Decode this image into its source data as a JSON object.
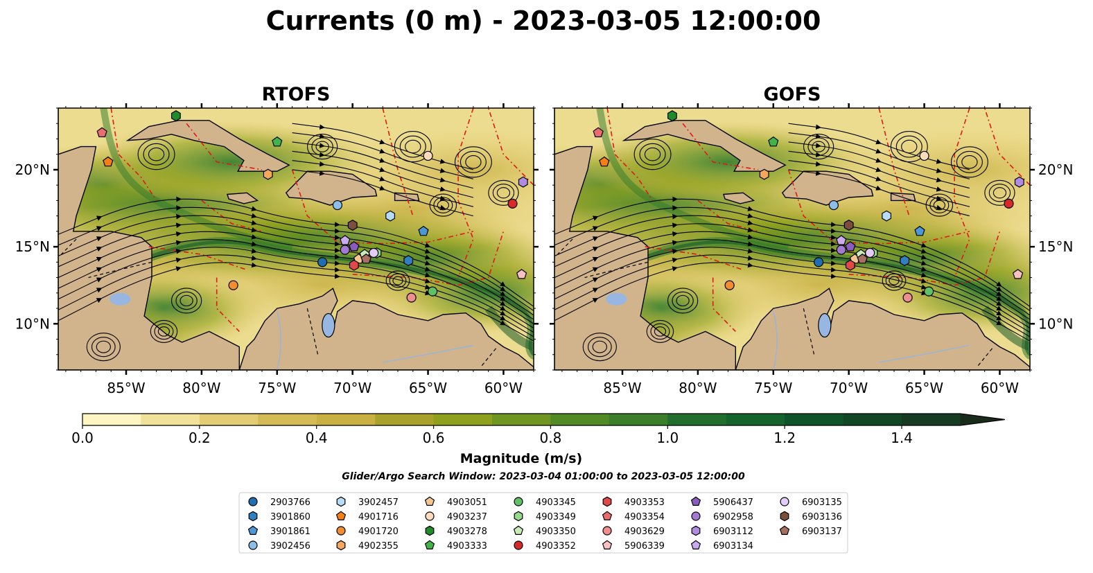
{
  "title": "Currents (0 m) - 2023-03-05 12:00:00",
  "chart_data": {
    "type": "map",
    "panels": [
      {
        "title": "RTOFS"
      },
      {
        "title": "GOFS"
      }
    ],
    "lon_range": [
      -89.5,
      -58
    ],
    "lat_range": [
      7,
      24
    ],
    "x_ticks": [
      "85°W",
      "80°W",
      "75°W",
      "70°W",
      "65°W",
      "60°W"
    ],
    "x_tick_values": [
      -85,
      -80,
      -75,
      -70,
      -65,
      -60
    ],
    "y_ticks": [
      "20°N",
      "15°N",
      "10°N"
    ],
    "y_tick_values": [
      20,
      15,
      10
    ],
    "colorbar": {
      "label": "Magnitude (m/s)",
      "ticks": [
        "0.0",
        "0.2",
        "0.4",
        "0.6",
        "0.8",
        "1.0",
        "1.2",
        "1.4"
      ],
      "tick_values": [
        0,
        0.2,
        0.4,
        0.6,
        0.8,
        1.0,
        1.2,
        1.4
      ],
      "range": [
        0,
        1.6
      ],
      "extend": "max",
      "colors": [
        "#fdf6c3",
        "#f1e29a",
        "#e3cd73",
        "#d5bb56",
        "#c8b043",
        "#a9a22a",
        "#8fa01c",
        "#6f9621",
        "#528a26",
        "#3c7f2a",
        "#226f2d",
        "#15632d",
        "#0f532a",
        "#124726",
        "#163a22",
        "#192c1c"
      ]
    },
    "search_window": "Glider/Argo Search Window: 2023-03-04 01:00:00 to 2023-03-05 12:00:00",
    "land_color": "#d2b48c",
    "lake_color": "#97b6e1",
    "platforms": [
      {
        "id": "2903766",
        "marker": "circle",
        "color": "#1f6eb0",
        "lon": -72,
        "lat": 14
      },
      {
        "id": "3901860",
        "marker": "hexagon",
        "color": "#2f7fc1",
        "lon": -66.3,
        "lat": 14.1
      },
      {
        "id": "3901861",
        "marker": "pentagon",
        "color": "#4a98d6",
        "lon": -65.3,
        "lat": 16
      },
      {
        "id": "3902456",
        "marker": "circle",
        "color": "#8dbde9",
        "lon": -71,
        "lat": 17.7
      },
      {
        "id": "3902457",
        "marker": "hexagon",
        "color": "#b8dcf5",
        "lon": -67.5,
        "lat": 17
      },
      {
        "id": "4901716",
        "marker": "pentagon",
        "color": "#f57f17",
        "lon": -86.2,
        "lat": 20.5
      },
      {
        "id": "4901720",
        "marker": "circle",
        "color": "#f28c30",
        "lon": -77.9,
        "lat": 12.5
      },
      {
        "id": "4902355",
        "marker": "hexagon",
        "color": "#f5a75c",
        "lon": -75.6,
        "lat": 19.7
      },
      {
        "id": "4903051",
        "marker": "pentagon",
        "color": "#f7c590",
        "lon": -69.6,
        "lat": 14.2
      },
      {
        "id": "4903237",
        "marker": "circle",
        "color": "#fcdcbc",
        "lon": -65,
        "lat": 20.9
      },
      {
        "id": "4903278",
        "marker": "hexagon",
        "color": "#1f8b2a",
        "lon": -81.7,
        "lat": 23.5
      },
      {
        "id": "4903333",
        "marker": "pentagon",
        "color": "#42b349",
        "lon": -75,
        "lat": 21.8
      },
      {
        "id": "4903345",
        "marker": "circle",
        "color": "#5fc064",
        "lon": -64.7,
        "lat": 12.1
      },
      {
        "id": "4903349",
        "marker": "hexagon",
        "color": "#95d98a",
        "lon": -68.4,
        "lat": 14.6
      },
      {
        "id": "4903350",
        "marker": "pentagon",
        "color": "#c7ecb8",
        "lon": -69.2,
        "lat": 14.5
      },
      {
        "id": "4903352",
        "marker": "circle",
        "color": "#d62a2a",
        "lon": -59.4,
        "lat": 17.8
      },
      {
        "id": "4903353",
        "marker": "hexagon",
        "color": "#e24848",
        "lon": -69.9,
        "lat": 13.8
      },
      {
        "id": "4903354",
        "marker": "pentagon",
        "color": "#eb6c6c",
        "lon": -86.6,
        "lat": 22.4
      },
      {
        "id": "4903629",
        "marker": "circle",
        "color": "#f08d8d",
        "lon": -66.1,
        "lat": 11.7
      },
      {
        "id": "5906339",
        "marker": "pentagon",
        "color": "#f8c0c0",
        "lon": -58.8,
        "lat": 13.2
      },
      {
        "id": "5906437",
        "marker": "pentagon",
        "color": "#8a5cc0",
        "lon": -69.9,
        "lat": 15
      },
      {
        "id": "6902958",
        "marker": "circle",
        "color": "#a27ad3",
        "lon": -70.5,
        "lat": 14.8
      },
      {
        "id": "6903112",
        "marker": "hexagon",
        "color": "#b18be0",
        "lon": -58.7,
        "lat": 19.2
      },
      {
        "id": "6903134",
        "marker": "pentagon",
        "color": "#c9aaee",
        "lon": -70.5,
        "lat": 15.4
      },
      {
        "id": "6903135",
        "marker": "circle",
        "color": "#e3ccf7",
        "lon": -68.6,
        "lat": 14.6
      },
      {
        "id": "6903136",
        "marker": "hexagon",
        "color": "#7d4e3e",
        "lon": -70,
        "lat": 16.4
      },
      {
        "id": "6903137",
        "marker": "pentagon",
        "color": "#a7705e",
        "lon": -69.1,
        "lat": 14.2
      }
    ]
  }
}
